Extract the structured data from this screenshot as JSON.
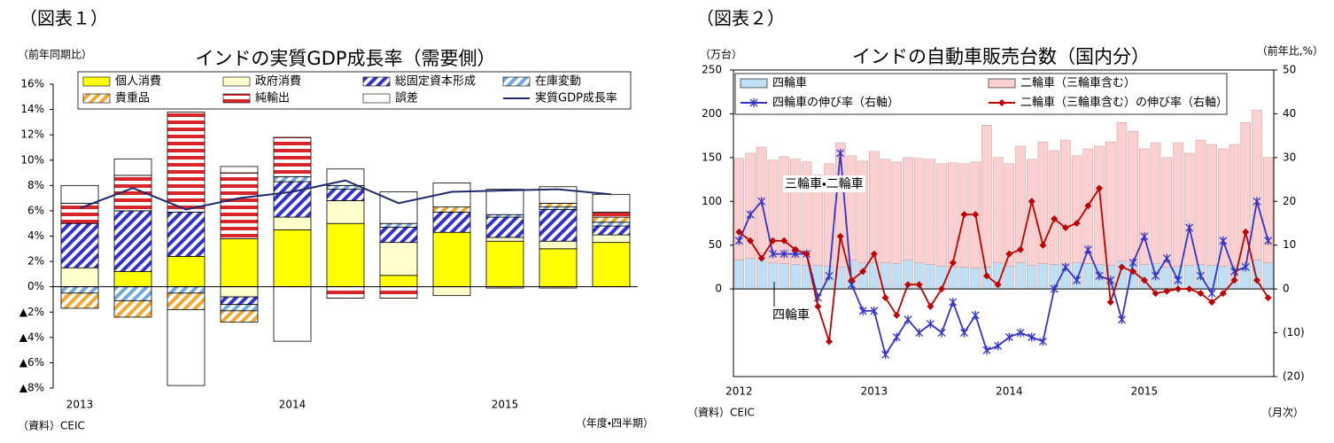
{
  "chart_data": [
    {
      "type": "bar",
      "stacked": true,
      "figure_label": "（図表１）",
      "title": "インドの実質GDP成長率（需要側）",
      "y_label": "（前年同期比）",
      "x_label": "（年度・四半期）",
      "source": "（資料）CEIC",
      "categories": [
        "2013",
        null,
        null,
        null,
        "2014",
        null,
        null,
        null,
        "2015",
        null,
        null
      ],
      "series": [
        {
          "name": "個人消費",
          "color": "#ffff00",
          "values": [
            0,
            1.2,
            2.4,
            3.8,
            4.5,
            5.0,
            0.9,
            4.3,
            3.6,
            3.0,
            3.5
          ]
        },
        {
          "name": "政府消費",
          "color": "#ffffcc",
          "values": [
            1.5,
            null,
            null,
            -0.8,
            1.0,
            1.8,
            2.6,
            -0.7,
            0.3,
            0.6,
            0.6
          ]
        },
        {
          "name": "総固定資本形成",
          "color": "#3333cc",
          "pattern": "diagonal",
          "values": [
            3.5,
            4.8,
            3.5,
            -0.6,
            2.8,
            0.9,
            1.2,
            1.6,
            1.6,
            2.5,
            0.7
          ]
        },
        {
          "name": "在庫変動",
          "color": "#6fa8dc",
          "pattern": "diagonal",
          "values": [
            -0.5,
            -1.1,
            -0.5,
            -0.5,
            0.4,
            0.3,
            0.3,
            null,
            0.2,
            0.2,
            0.3
          ]
        },
        {
          "name": "貴重品",
          "color": "#f0a830",
          "pattern": "diagonal",
          "values": [
            -1.2,
            -1.3,
            -1.3,
            -0.9,
            null,
            null,
            null,
            0.4,
            null,
            0.3,
            0.4
          ]
        },
        {
          "name": "純輸出",
          "color": "#d9262b",
          "pattern": "horizontal",
          "values": [
            1.6,
            2.8,
            7.9,
            5.2,
            3.1,
            -0.9,
            -0.9,
            null,
            -0.1,
            -0.1,
            0.4
          ]
        },
        {
          "name": "誤差",
          "color": "#ffffff",
          "values": [
            1.4,
            1.3,
            -6.0,
            0.5,
            -4.3,
            1.3,
            2.5,
            1.9,
            2.0,
            1.3,
            1.4
          ]
        }
      ],
      "lines": [
        {
          "name": "実質GDP成長率",
          "color": "#1f2a6b",
          "values": [
            6.2,
            7.8,
            6.1,
            7.0,
            7.5,
            8.4,
            6.6,
            7.5,
            7.6,
            7.7,
            7.3
          ]
        }
      ],
      "ylim": [
        -8,
        16
      ],
      "yticks": [
        {
          "value": -8,
          "label": "▲8%"
        },
        {
          "value": -6,
          "label": "▲6%"
        },
        {
          "value": -4,
          "label": "▲4%"
        },
        {
          "value": -2,
          "label": "▲2%"
        },
        {
          "value": 0,
          "label": "0%"
        },
        {
          "value": 2,
          "label": "2%"
        },
        {
          "value": 4,
          "label": "4%"
        },
        {
          "value": 6,
          "label": "6%"
        },
        {
          "value": 8,
          "label": "8%"
        },
        {
          "value": 10,
          "label": "10%"
        },
        {
          "value": 12,
          "label": "12%"
        },
        {
          "value": 14,
          "label": "14%"
        },
        {
          "value": 16,
          "label": "16%"
        }
      ],
      "legend": "top"
    },
    {
      "type": "bar",
      "stacked": true,
      "figure_label": "（図表２）",
      "title": "インドの自動車販売台数（国内分）",
      "y_label": "（万台）",
      "y2_label": "（前年比,%）",
      "x_label": "（月次）",
      "source": "（資料）CEIC",
      "categories": [
        "2012",
        null,
        null,
        null,
        null,
        null,
        null,
        null,
        null,
        null,
        null,
        null,
        "2013",
        null,
        null,
        null,
        null,
        null,
        null,
        null,
        null,
        null,
        null,
        null,
        "2014",
        null,
        null,
        null,
        null,
        null,
        null,
        null,
        null,
        null,
        null,
        null,
        "2015",
        null,
        null,
        null,
        null,
        null,
        null,
        null,
        null,
        null,
        null,
        null
      ],
      "series": [
        {
          "name": "四輪車",
          "color": "#bfe0f4",
          "values": [
            33,
            35,
            36,
            30,
            29,
            28,
            27,
            27,
            26,
            25,
            33,
            30,
            30,
            30,
            29,
            33,
            30,
            28,
            26,
            25,
            25,
            24,
            25,
            30,
            26,
            30,
            27,
            29,
            28,
            27,
            30,
            29,
            28,
            27,
            32,
            30,
            28,
            29,
            25,
            26,
            27,
            28,
            27,
            26,
            27,
            30,
            33,
            30
          ]
        },
        {
          "name": "二輪車（三輪車含む）",
          "color": "#fcd0d0",
          "values": [
            116,
            120,
            126,
            117,
            122,
            120,
            118,
            103,
            117,
            142,
            119,
            116,
            127,
            118,
            116,
            117,
            119,
            120,
            117,
            119,
            118,
            121,
            162,
            120,
            117,
            133,
            121,
            139,
            130,
            143,
            122,
            131,
            135,
            141,
            158,
            150,
            132,
            138,
            125,
            141,
            128,
            142,
            138,
            134,
            138,
            160,
            171,
            120
          ]
        }
      ],
      "lines": [
        {
          "name": "四輪車の伸び率（右軸）",
          "color": "#3333cc",
          "marker": "star",
          "axis": "y2",
          "values": [
            11,
            17,
            20,
            8,
            8,
            8,
            8,
            -2,
            3,
            31,
            1,
            -5,
            -5,
            -15,
            -11,
            -7,
            -10,
            -8,
            -10,
            -3,
            -10,
            -6,
            -14,
            -13,
            -11,
            -10,
            -11,
            -12,
            0,
            5,
            2,
            9,
            3,
            2,
            -7,
            6,
            12,
            3,
            7,
            2,
            14,
            3,
            -1,
            11,
            4,
            5,
            20,
            11
          ]
        },
        {
          "name": "二輪車（三輪車含む）の伸び率（右軸）",
          "color": "#c00000",
          "marker": "diamond",
          "axis": "y2",
          "values": [
            13,
            11,
            7,
            11,
            11,
            9,
            8,
            -4,
            -12,
            12,
            2,
            4,
            8,
            -2,
            -6,
            1,
            1,
            -4,
            0,
            6,
            17,
            17,
            3,
            1,
            8,
            9,
            20,
            10,
            16,
            14,
            15,
            19,
            23,
            -3,
            5,
            4,
            2,
            -1,
            -0.5,
            0,
            0,
            -1,
            -3,
            -1,
            2,
            13,
            2,
            -2
          ]
        }
      ],
      "annotations": [
        "三輪車・二輪車",
        "四輪車"
      ],
      "ylim": [
        -100,
        250
      ],
      "yticks": [
        0,
        50,
        100,
        150,
        200,
        250
      ],
      "y2lim": [
        -20,
        50
      ],
      "y2ticks": [
        {
          "value": -20,
          "label": "(20)"
        },
        {
          "value": -10,
          "label": "(10)"
        },
        0,
        10,
        20,
        30,
        40,
        50
      ],
      "legend": "top"
    }
  ]
}
